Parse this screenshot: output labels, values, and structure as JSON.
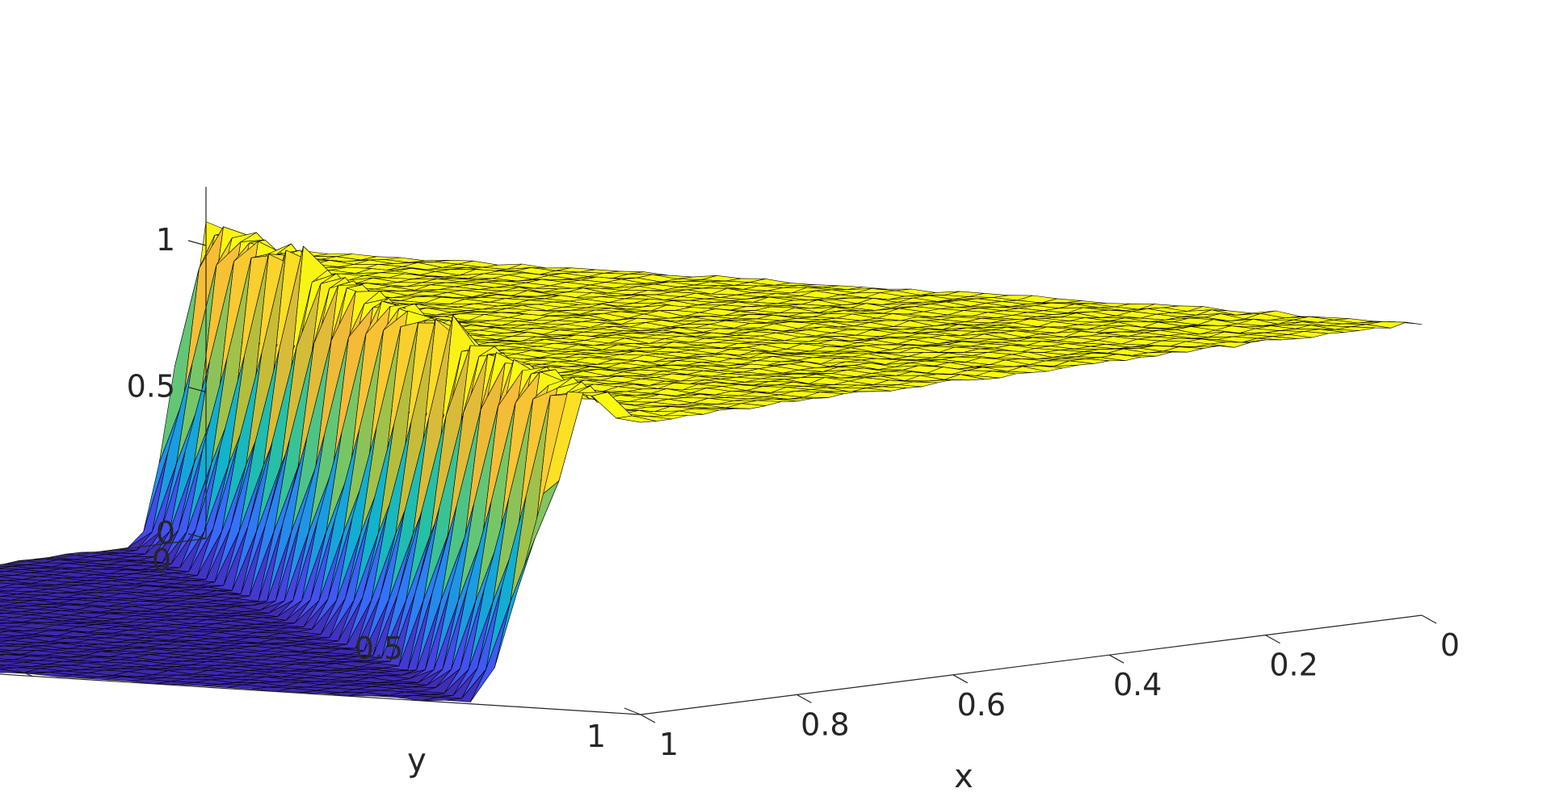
{
  "chart_data": {
    "type": "surface",
    "title": "",
    "xlabel": "x",
    "ylabel": "y",
    "zlabel": "",
    "xlim": [
      0,
      1
    ],
    "ylim": [
      0,
      1
    ],
    "zlim": [
      0,
      1.2
    ],
    "x_ticks": [
      0,
      0.2,
      0.4,
      0.6,
      0.8,
      1
    ],
    "x_tick_labels": [
      "0",
      "0.2",
      "0.4",
      "0.6",
      "0.8",
      "1"
    ],
    "y_ticks": [
      0,
      0.5,
      1
    ],
    "y_tick_labels": [
      "0",
      "0.5",
      "1"
    ],
    "z_ticks": [
      0,
      0.5,
      1
    ],
    "z_tick_labels": [
      "0",
      "0.5",
      "1"
    ],
    "colormap": "parula",
    "edge_color": "#000000",
    "grid": false,
    "legend": "none",
    "plateau_value": 1,
    "background_value": 0,
    "plateau_region": "y < 1 - 0.95*x (upper left part of domain)",
    "front_edge_overshoot": 1.1,
    "x_front_at_y1": 0.68,
    "resolution": 50
  }
}
